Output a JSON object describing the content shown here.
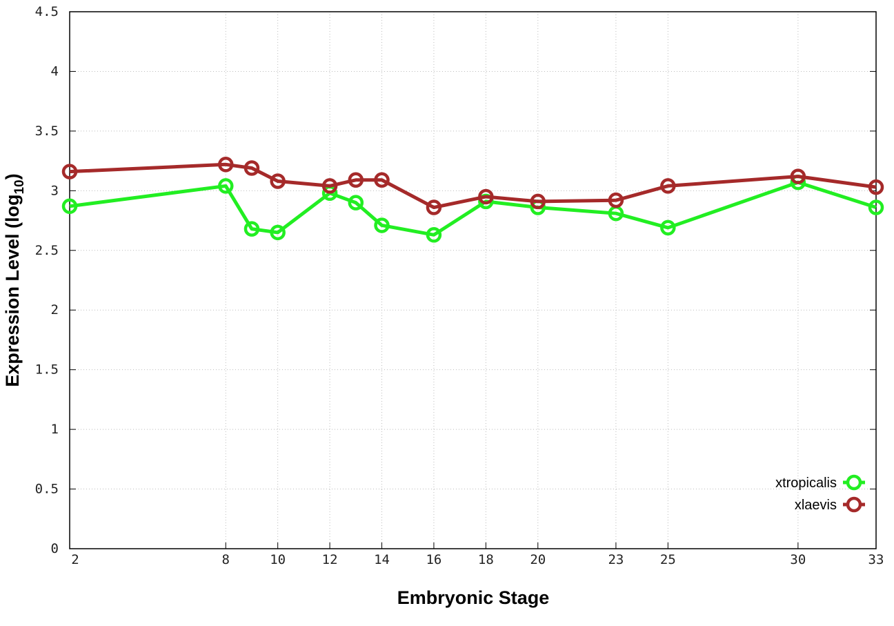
{
  "chart_data": {
    "type": "line",
    "title": "",
    "xlabel": "Embryonic Stage",
    "ylabel": "Expression Level (log",
    "ylabel_sub": "10",
    "ylabel_end": ")",
    "xlim": [
      2,
      33
    ],
    "ylim": [
      0,
      4.5
    ],
    "x_ticks": [
      2,
      8,
      10,
      12,
      14,
      16,
      18,
      20,
      23,
      25,
      30,
      33
    ],
    "y_ticks": [
      "0",
      "0.5",
      "1",
      "1.5",
      "2",
      "2.5",
      "3",
      "3.5",
      "4",
      "4.5"
    ],
    "grid": true,
    "legend_position": "bottom-right",
    "x": [
      2,
      8,
      9,
      10,
      12,
      13,
      14,
      16,
      18,
      20,
      23,
      25,
      30,
      33
    ],
    "series": [
      {
        "name": "xtropicalis",
        "color": "#22ee22",
        "values": [
          2.87,
          3.04,
          2.68,
          2.65,
          2.98,
          2.9,
          2.71,
          2.63,
          2.91,
          2.86,
          2.81,
          2.69,
          3.07,
          2.86
        ]
      },
      {
        "name": "xlaevis",
        "color": "#a52a2a",
        "values": [
          3.16,
          3.22,
          3.19,
          3.08,
          3.04,
          3.09,
          3.09,
          2.86,
          2.95,
          2.91,
          2.92,
          3.04,
          3.12,
          3.03
        ]
      }
    ]
  }
}
